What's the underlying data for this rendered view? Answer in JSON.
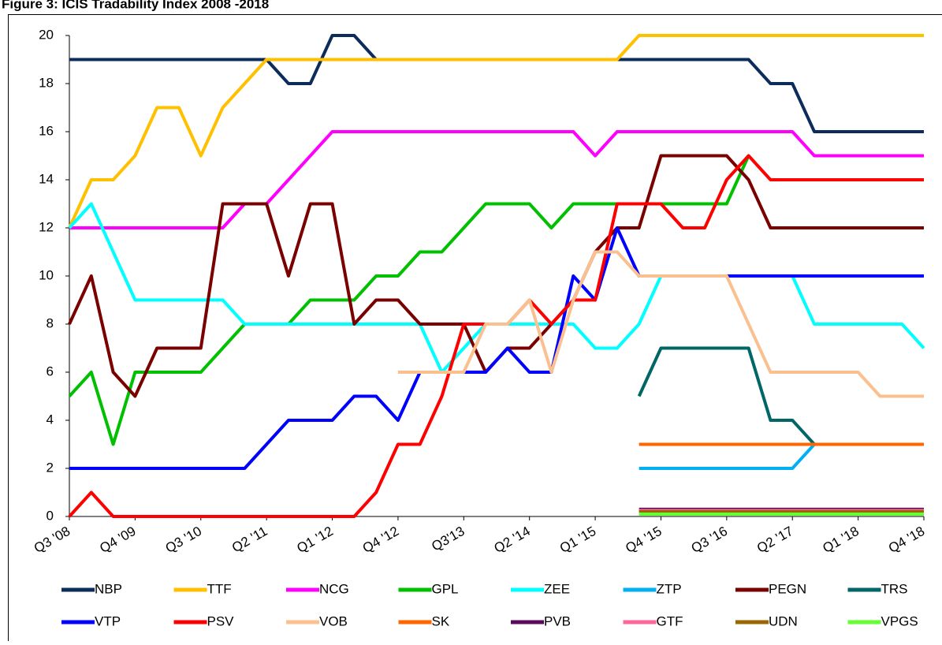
{
  "chart_data": {
    "type": "line",
    "title": "Figure 3: ICIS Tradability Index 2008 -2018",
    "categories": [
      "Q3 '08",
      null,
      null,
      "Q4 '09",
      null,
      null,
      "Q3 '10",
      null,
      null,
      "Q2 '11",
      null,
      null,
      "Q1 '12",
      null,
      null,
      "Q4 '12",
      null,
      null,
      "Q3'13",
      null,
      null,
      "Q2 '14",
      null,
      null,
      "Q1 '15",
      null,
      null,
      "Q4 '15",
      null,
      null,
      "Q3 '16",
      null,
      null,
      "Q2 '17",
      null,
      null,
      "Q1 '18",
      null,
      null,
      "Q4 '18"
    ],
    "ylim": [
      0,
      20
    ],
    "yticks": [
      0,
      2,
      4,
      6,
      8,
      10,
      12,
      14,
      16,
      18,
      20
    ],
    "grid": false,
    "series": [
      {
        "name": "NBP",
        "color": "#0c2c5c",
        "values": [
          19,
          19,
          19,
          19,
          19,
          19,
          19,
          19,
          19,
          19,
          18,
          18,
          20,
          20,
          19,
          19,
          19,
          19,
          19,
          19,
          19,
          19,
          19,
          19,
          19,
          19,
          19,
          19,
          19,
          19,
          19,
          19,
          18,
          18,
          16,
          16,
          16,
          16,
          16,
          16
        ]
      },
      {
        "name": "TTF",
        "color": "#ffc000",
        "values": [
          12,
          14,
          14,
          15,
          17,
          17,
          15,
          17,
          18,
          19,
          19,
          19,
          19,
          19,
          19,
          19,
          19,
          19,
          19,
          19,
          19,
          19,
          19,
          19,
          19,
          19,
          20,
          20,
          20,
          20,
          20,
          20,
          20,
          20,
          20,
          20,
          20,
          20,
          20,
          20
        ]
      },
      {
        "name": "NCG",
        "color": "#ff00ff",
        "values": [
          12,
          12,
          12,
          12,
          12,
          12,
          12,
          12,
          13,
          13,
          14,
          15,
          16,
          16,
          16,
          16,
          16,
          16,
          16,
          16,
          16,
          16,
          16,
          16,
          15,
          16,
          16,
          16,
          16,
          16,
          16,
          16,
          16,
          16,
          15,
          15,
          15,
          15,
          15,
          15
        ]
      },
      {
        "name": "GPL",
        "color": "#00c000",
        "values": [
          5,
          6,
          3,
          6,
          6,
          6,
          6,
          7,
          8,
          8,
          8,
          9,
          9,
          9,
          10,
          10,
          11,
          11,
          12,
          13,
          13,
          13,
          12,
          13,
          13,
          13,
          13,
          13,
          13,
          13,
          13,
          15,
          null,
          null,
          null,
          null,
          null,
          null,
          null,
          null
        ]
      },
      {
        "name": "ZEE",
        "color": "#00ffff",
        "values": [
          12,
          13,
          11,
          9,
          9,
          9,
          9,
          9,
          8,
          8,
          8,
          8,
          8,
          8,
          8,
          8,
          8,
          6,
          7,
          8,
          8,
          8,
          8,
          8,
          7,
          7,
          8,
          10,
          10,
          10,
          10,
          10,
          10,
          10,
          8,
          8,
          8,
          8,
          8,
          7
        ]
      },
      {
        "name": "ZTP",
        "color": "#00b0f0",
        "values": [
          null,
          null,
          null,
          null,
          null,
          null,
          null,
          null,
          null,
          null,
          null,
          null,
          null,
          null,
          null,
          null,
          null,
          null,
          null,
          null,
          null,
          null,
          null,
          null,
          null,
          null,
          2,
          2,
          2,
          2,
          2,
          2,
          2,
          2,
          3,
          3,
          3,
          3,
          3,
          3
        ]
      },
      {
        "name": "PEGN",
        "color": "#7a0000",
        "values": [
          8,
          10,
          6,
          5,
          7,
          7,
          7,
          13,
          13,
          13,
          10,
          13,
          13,
          8,
          9,
          9,
          8,
          8,
          8,
          6,
          7,
          7,
          8,
          9,
          11,
          12,
          12,
          15,
          15,
          15,
          15,
          14,
          12,
          12,
          12,
          12,
          12,
          12,
          12,
          12
        ]
      },
      {
        "name": "TRS",
        "color": "#006666",
        "values": [
          null,
          null,
          null,
          null,
          null,
          null,
          null,
          null,
          null,
          null,
          null,
          null,
          null,
          null,
          null,
          null,
          null,
          null,
          null,
          null,
          null,
          null,
          null,
          null,
          null,
          null,
          5,
          7,
          7,
          7,
          7,
          7,
          4,
          4,
          3,
          3,
          3,
          3,
          3,
          3
        ]
      },
      {
        "name": "VTP",
        "color": "#0000ff",
        "values": [
          2,
          2,
          2,
          2,
          2,
          2,
          2,
          2,
          2,
          3,
          4,
          4,
          4,
          5,
          5,
          4,
          6,
          6,
          6,
          6,
          7,
          6,
          6,
          10,
          9,
          12,
          10,
          10,
          10,
          10,
          10,
          10,
          10,
          10,
          10,
          10,
          10,
          10,
          10,
          10
        ]
      },
      {
        "name": "PSV",
        "color": "#ff0000",
        "values": [
          0,
          1,
          0,
          0,
          0,
          0,
          0,
          0,
          0,
          0,
          0,
          0,
          0,
          0,
          1,
          3,
          3,
          5,
          8,
          8,
          8,
          9,
          8,
          9,
          9,
          13,
          13,
          13,
          12,
          12,
          14,
          15,
          14,
          14,
          14,
          14,
          14,
          14,
          14,
          14
        ]
      },
      {
        "name": "VOB",
        "color": "#fac090",
        "values": [
          null,
          null,
          null,
          null,
          null,
          null,
          null,
          null,
          null,
          null,
          null,
          null,
          null,
          null,
          null,
          6,
          6,
          6,
          6,
          8,
          8,
          9,
          6,
          9,
          11,
          11,
          10,
          10,
          10,
          10,
          10,
          8,
          6,
          6,
          6,
          6,
          6,
          5,
          5,
          5
        ]
      },
      {
        "name": "SK",
        "color": "#ff6600",
        "values": [
          null,
          null,
          null,
          null,
          null,
          null,
          null,
          null,
          null,
          null,
          null,
          null,
          null,
          null,
          null,
          null,
          null,
          null,
          null,
          null,
          null,
          null,
          null,
          null,
          null,
          null,
          3,
          3,
          3,
          3,
          3,
          3,
          3,
          3,
          3,
          3,
          3,
          3,
          3,
          3
        ]
      },
      {
        "name": "PVB",
        "color": "#5a0a5a",
        "values": [
          null,
          null,
          null,
          null,
          null,
          null,
          null,
          null,
          null,
          null,
          null,
          null,
          null,
          null,
          null,
          null,
          null,
          null,
          null,
          null,
          null,
          null,
          null,
          null,
          null,
          null,
          0.3,
          0.3,
          0.3,
          0.3,
          0.3,
          0.3,
          0.3,
          0.3,
          0.3,
          0.3,
          0.3,
          0.3,
          0.3,
          0.3
        ]
      },
      {
        "name": "GTF",
        "color": "#ff6699",
        "values": [
          null,
          null,
          null,
          null,
          null,
          null,
          null,
          null,
          null,
          null,
          null,
          null,
          null,
          null,
          null,
          null,
          null,
          null,
          null,
          null,
          null,
          null,
          null,
          null,
          null,
          null,
          0.25,
          0.25,
          0.25,
          0.25,
          0.25,
          0.25,
          0.25,
          0.25,
          0.25,
          0.25,
          0.25,
          0.25,
          0.25,
          0.25
        ]
      },
      {
        "name": "UDN",
        "color": "#996600",
        "values": [
          null,
          null,
          null,
          null,
          null,
          null,
          null,
          null,
          null,
          null,
          null,
          null,
          null,
          null,
          null,
          null,
          null,
          null,
          null,
          null,
          null,
          null,
          null,
          null,
          null,
          null,
          0.2,
          0.2,
          0.2,
          0.2,
          0.2,
          0.2,
          0.2,
          0.2,
          0.2,
          0.2,
          0.2,
          0.2,
          0.2,
          0.2
        ]
      },
      {
        "name": "VPGS",
        "color": "#66ff33",
        "values": [
          null,
          null,
          null,
          null,
          null,
          null,
          null,
          null,
          null,
          null,
          null,
          null,
          null,
          null,
          null,
          null,
          null,
          null,
          null,
          null,
          null,
          null,
          null,
          null,
          null,
          null,
          0.1,
          0.1,
          0.1,
          0.1,
          0.1,
          0.1,
          0.1,
          0.1,
          0.1,
          0.1,
          0.1,
          0.1,
          0.1,
          0.1
        ]
      }
    ]
  }
}
